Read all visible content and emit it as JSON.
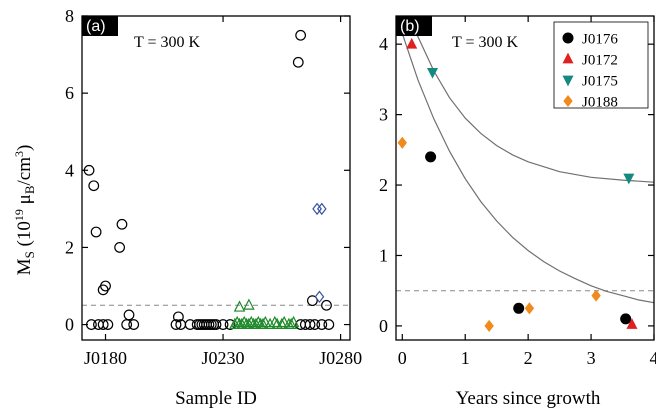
{
  "shared": {
    "ylabel_main": "M",
    "ylabel_sub": "S",
    "ylabel_units_pre": " (10",
    "ylabel_exp": "19",
    "ylabel_mu": " μ",
    "ylabel_musub": "B",
    "ylabel_units_post": "/cm",
    "ylabel_exp3": "3",
    "ylabel_close": ")"
  },
  "chart_data": [
    {
      "type": "scatter",
      "panel_label": "(a)",
      "annotation": "T = 300 K",
      "xlabel": "Sample ID",
      "ylabel": "MS (10^19 μB/cm^3)",
      "xlim": [
        170,
        284
      ],
      "ylim": [
        -0.4,
        8
      ],
      "x_ticks": [
        {
          "value": 180,
          "label": "J0180"
        },
        {
          "value": 230,
          "label": "J0230"
        },
        {
          "value": 280,
          "label": "J0280"
        }
      ],
      "y_ticks": [
        0,
        2,
        4,
        6,
        8
      ],
      "threshold": 0.5,
      "series": [
        {
          "marker": "circle",
          "color": "#000000",
          "points": [
            [
              173,
              4.0
            ],
            [
              175,
              3.6
            ],
            [
              176,
              2.4
            ],
            [
              179,
              0.9
            ],
            [
              180,
              1.0
            ],
            [
              186,
              2.0
            ],
            [
              187,
              2.6
            ],
            [
              190,
              0.25
            ],
            [
              211,
              0.2
            ],
            [
              262,
              6.8
            ],
            [
              263,
              7.5
            ],
            [
              268,
              0.62
            ],
            [
              274,
              0.5
            ],
            [
              174,
              0.0
            ],
            [
              177,
              0.0
            ],
            [
              179,
              0.0
            ],
            [
              181,
              0.0
            ],
            [
              189,
              0.0
            ],
            [
              192,
              0.0
            ],
            [
              210,
              0.0
            ],
            [
              212,
              0.0
            ],
            [
              216,
              0.0
            ],
            [
              219,
              0.0
            ],
            [
              220,
              0.0
            ],
            [
              221,
              0.0
            ],
            [
              222,
              0.0
            ],
            [
              223,
              0.0
            ],
            [
              224,
              0.0
            ],
            [
              225,
              0.0
            ],
            [
              226,
              0.0
            ],
            [
              227,
              0.0
            ],
            [
              230,
              0.0
            ],
            [
              233,
              0.0
            ],
            [
              263,
              0.0
            ],
            [
              265,
              0.0
            ],
            [
              267,
              0.0
            ],
            [
              269,
              0.0
            ],
            [
              272,
              0.0
            ],
            [
              275,
              0.0
            ]
          ]
        },
        {
          "marker": "triangle-up",
          "color": "#1f8a2a",
          "points": [
            [
              237,
              0.45
            ],
            [
              241,
              0.5
            ],
            [
              235,
              0.0
            ],
            [
              236,
              0.05
            ],
            [
              237,
              0.0
            ],
            [
              238,
              0.0
            ],
            [
              239,
              0.05
            ],
            [
              240,
              0.0
            ],
            [
              241,
              0.0
            ],
            [
              242,
              0.05
            ],
            [
              243,
              0.0
            ],
            [
              244,
              0.0
            ],
            [
              245,
              0.05
            ],
            [
              246,
              0.0
            ],
            [
              247,
              0.0
            ],
            [
              248,
              0.05
            ],
            [
              250,
              0.0
            ],
            [
              252,
              0.05
            ],
            [
              253,
              0.0
            ],
            [
              255,
              0.0
            ],
            [
              256,
              0.05
            ],
            [
              258,
              0.0
            ],
            [
              259,
              0.0
            ],
            [
              260,
              0.05
            ]
          ]
        },
        {
          "marker": "diamond",
          "color": "#3a50a8",
          "points": [
            [
              270,
              3.0
            ],
            [
              272,
              3.0
            ],
            [
              271,
              0.72
            ]
          ]
        }
      ]
    },
    {
      "type": "scatter",
      "panel_label": "(b)",
      "annotation": "T = 300 K",
      "xlabel": "Years since growth",
      "ylabel": "",
      "xlim": [
        -0.1,
        4.0
      ],
      "ylim": [
        -0.2,
        4.4
      ],
      "x_ticks": [
        {
          "value": 0,
          "label": "0"
        },
        {
          "value": 1,
          "label": "1"
        },
        {
          "value": 2,
          "label": "2"
        },
        {
          "value": 3,
          "label": "3"
        },
        {
          "value": 4,
          "label": "4"
        }
      ],
      "y_ticks": [
        0,
        1,
        2,
        3,
        4
      ],
      "threshold": 0.5,
      "legend_position": "top-right",
      "series": [
        {
          "name": "J0176",
          "marker": "circle",
          "color": "#000000",
          "points": [
            [
              0.45,
              2.4
            ],
            [
              1.85,
              0.25
            ],
            [
              3.55,
              0.1
            ]
          ]
        },
        {
          "name": "J0172",
          "marker": "triangle-up",
          "color": "#e02020",
          "points": [
            [
              0.15,
              4.0
            ],
            [
              3.65,
              0.02
            ]
          ]
        },
        {
          "name": "J0175",
          "marker": "triangle-down",
          "color": "#138a80",
          "points": [
            [
              0.48,
              3.6
            ],
            [
              3.6,
              2.1
            ]
          ]
        },
        {
          "name": "J0188",
          "marker": "diamond",
          "color": "#f08a1a",
          "points": [
            [
              0.0,
              2.6
            ],
            [
              1.38,
              0.0
            ],
            [
              2.02,
              0.25
            ],
            [
              3.08,
              0.43
            ]
          ]
        }
      ],
      "fits": [
        {
          "color": "#707070",
          "points": [
            [
              0.0,
              4.15
            ],
            [
              0.25,
              3.49
            ],
            [
              0.5,
              2.94
            ],
            [
              0.75,
              2.48
            ],
            [
              1.0,
              2.09
            ],
            [
              1.25,
              1.76
            ],
            [
              1.5,
              1.49
            ],
            [
              1.75,
              1.26
            ],
            [
              2.0,
              1.07
            ],
            [
              2.25,
              0.91
            ],
            [
              2.5,
              0.78
            ],
            [
              2.75,
              0.67
            ],
            [
              3.0,
              0.57
            ],
            [
              3.25,
              0.49
            ],
            [
              3.5,
              0.43
            ],
            [
              3.75,
              0.37
            ],
            [
              4.0,
              0.33
            ]
          ]
        },
        {
          "color": "#707070",
          "points": [
            [
              0.2,
              4.2
            ],
            [
              0.5,
              3.62
            ],
            [
              0.75,
              3.24
            ],
            [
              1.0,
              2.95
            ],
            [
              1.25,
              2.73
            ],
            [
              1.5,
              2.56
            ],
            [
              1.75,
              2.43
            ],
            [
              2.0,
              2.33
            ],
            [
              2.5,
              2.19
            ],
            [
              3.0,
              2.11
            ],
            [
              3.5,
              2.07
            ],
            [
              4.0,
              2.04
            ]
          ]
        }
      ]
    }
  ]
}
